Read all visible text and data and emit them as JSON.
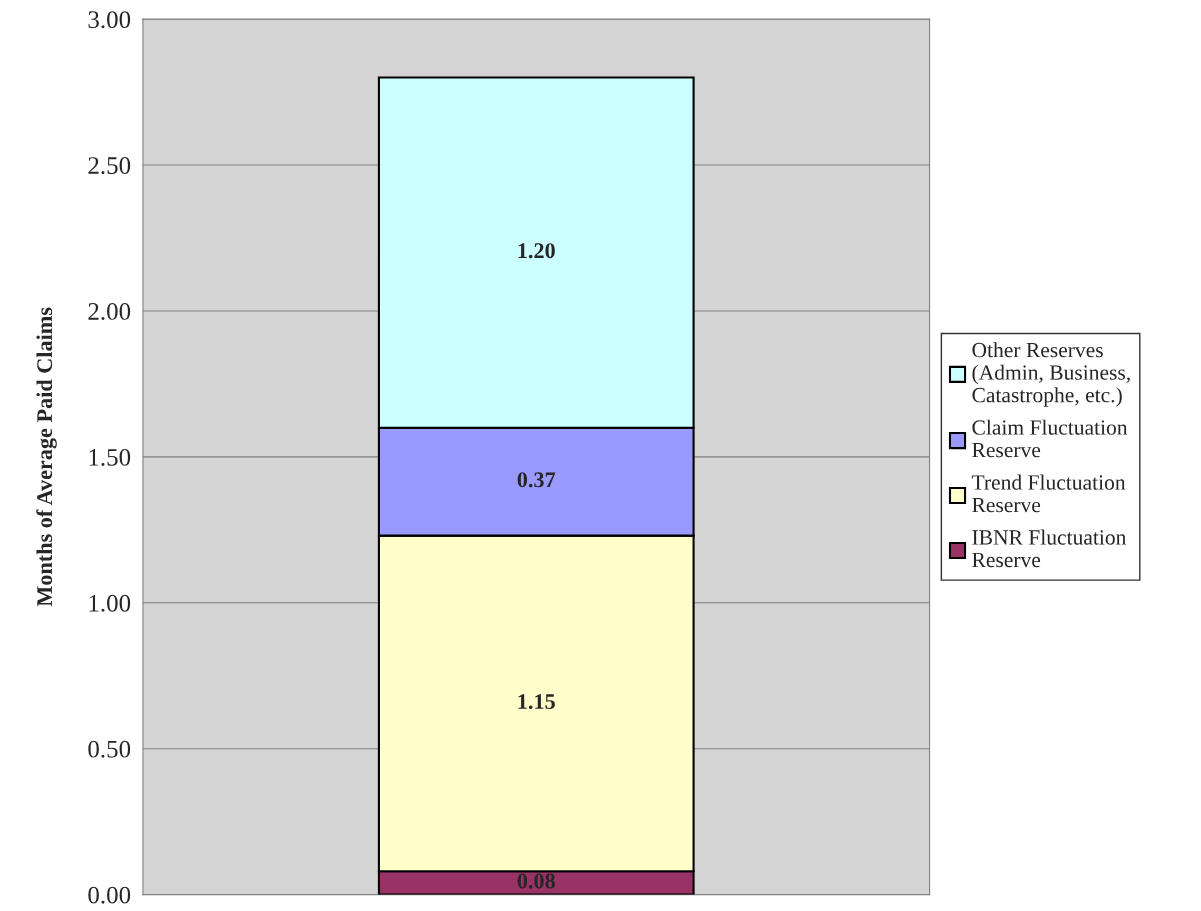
{
  "chart_data": {
    "type": "bar",
    "stacked": true,
    "ylabel": "Months of Average Paid Claims",
    "categories": [
      null
    ],
    "series": [
      {
        "name": "IBNR Fluctuation\nReserve",
        "color": "#993366",
        "values": [
          0.08
        ],
        "value_labels": [
          "0.08"
        ]
      },
      {
        "name": "Trend Fluctuation\nReserve",
        "color": "#ffffcc",
        "values": [
          1.15
        ],
        "value_labels": [
          "1.15"
        ]
      },
      {
        "name": "Claim Fluctuation\nReserve",
        "color": "#9999ff",
        "values": [
          0.37
        ],
        "value_labels": [
          "0.37"
        ]
      },
      {
        "name": "Other Reserves\n(Admin, Business,\nCatastrophe, etc.)",
        "color": "#ccffff",
        "values": [
          1.2
        ],
        "value_labels": [
          "1.20"
        ]
      }
    ],
    "ylim": [
      0,
      3
    ],
    "yticks": [
      {
        "value": 0,
        "label": "0.00"
      },
      {
        "value": 0.5,
        "label": "0.50"
      },
      {
        "value": 1,
        "label": "1.00"
      },
      {
        "value": 1.5,
        "label": "1.50"
      },
      {
        "value": 2,
        "label": "2.00"
      },
      {
        "value": 2.5,
        "label": "2.50"
      },
      {
        "value": 3,
        "label": "3.00"
      }
    ],
    "grid": "y",
    "legend": "right"
  }
}
